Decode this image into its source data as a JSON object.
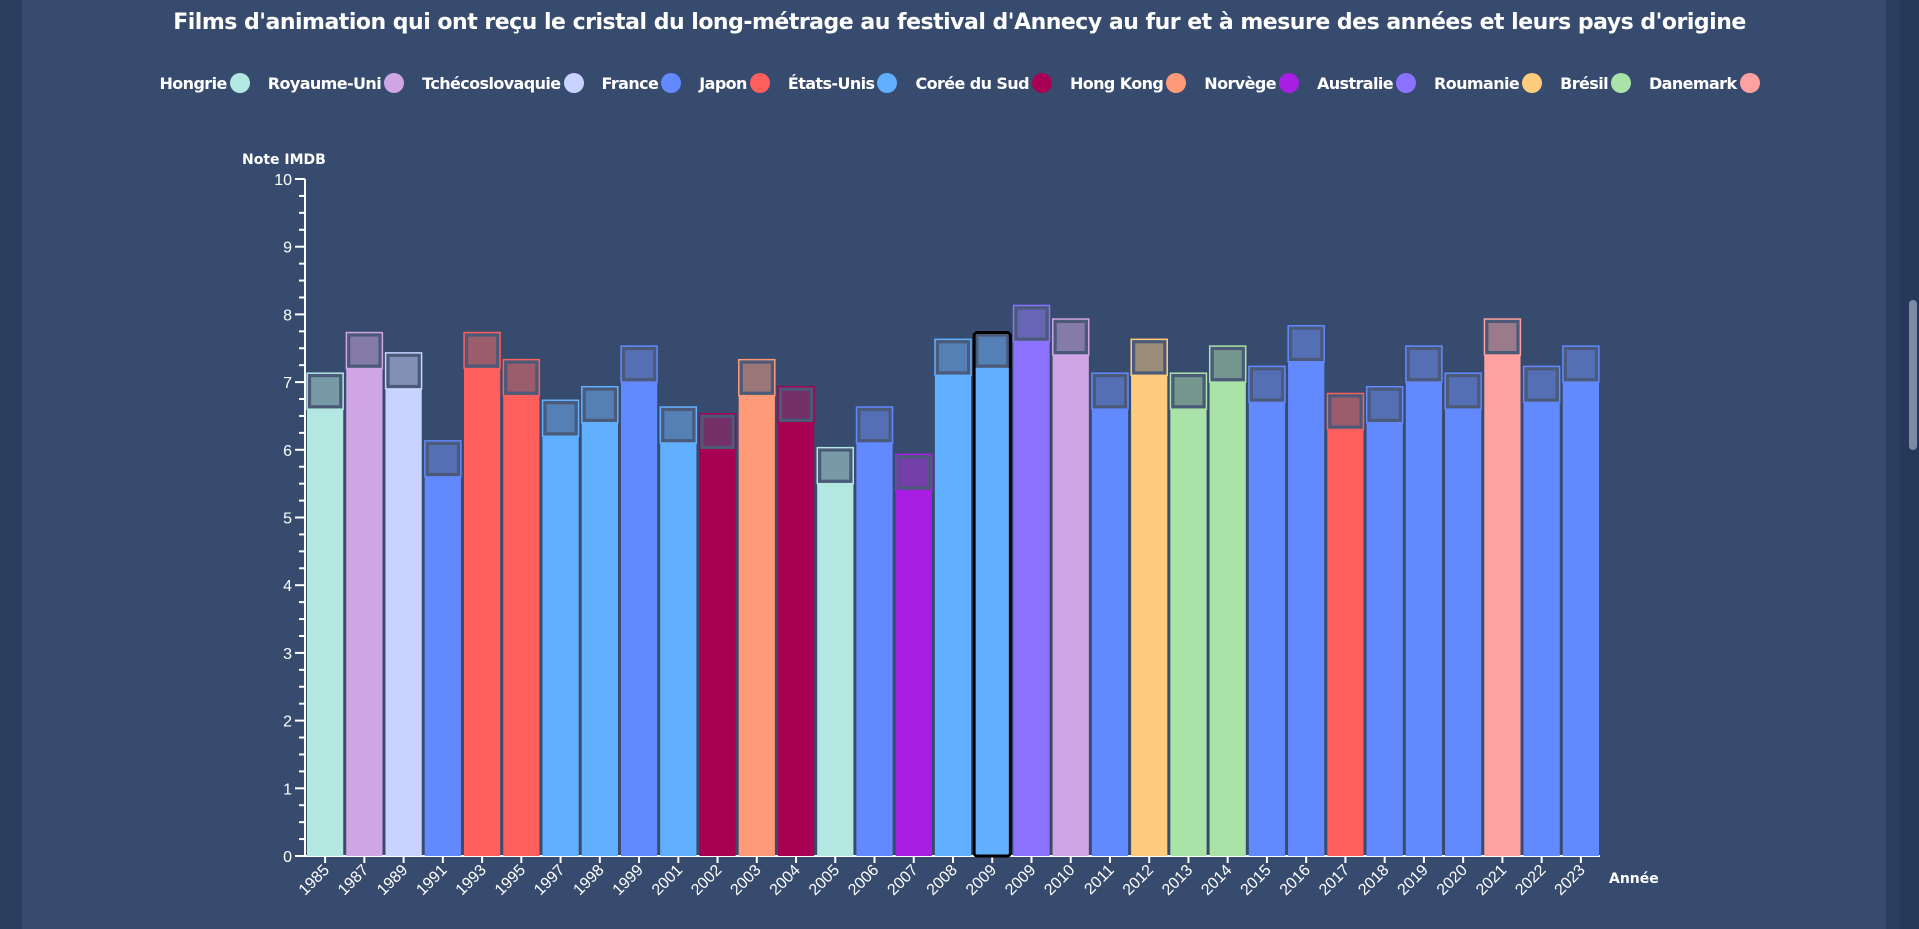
{
  "chart_data": {
    "type": "bar",
    "title": "Films d'animation qui ont reçu le cristal du long-métrage au festival d'Annecy au fur et à mesure des années et leurs pays d'origine",
    "ylabel": "Note IMDB",
    "xlabel": "Année",
    "ylim": [
      0,
      10
    ],
    "yticks": [
      "0",
      "1",
      "2",
      "3",
      "4",
      "5",
      "6",
      "7",
      "8",
      "9",
      "10"
    ],
    "grid": false,
    "legend_position": "top",
    "legend": [
      {
        "name": "Hongrie",
        "color": "#b2e8e1"
      },
      {
        "name": "Royaume-Uni",
        "color": "#cfa5e4"
      },
      {
        "name": "Tchécoslovaquie",
        "color": "#c8d3ff"
      },
      {
        "name": "France",
        "color": "#6389ff"
      },
      {
        "name": "Japon",
        "color": "#ff5f5c"
      },
      {
        "name": "États-Unis",
        "color": "#61b0ff"
      },
      {
        "name": "Corée du Sud",
        "color": "#a80052"
      },
      {
        "name": "Hong Kong",
        "color": "#ff9a78"
      },
      {
        "name": "Norvège",
        "color": "#a81fe3"
      },
      {
        "name": "Australie",
        "color": "#8c73ff"
      },
      {
        "name": "Roumanie",
        "color": "#ffcb7d"
      },
      {
        "name": "Brésil",
        "color": "#aae3a7"
      },
      {
        "name": "Danemark",
        "color": "#ffa1a1"
      }
    ],
    "bars": [
      {
        "year": "1985",
        "value": 6.6,
        "country": "Hongrie"
      },
      {
        "year": "1987",
        "value": 7.2,
        "country": "Royaume-Uni"
      },
      {
        "year": "1989",
        "value": 6.9,
        "country": "Tchécoslovaquie"
      },
      {
        "year": "1991",
        "value": 5.6,
        "country": "France"
      },
      {
        "year": "1993",
        "value": 7.2,
        "country": "Japon"
      },
      {
        "year": "1995",
        "value": 6.8,
        "country": "Japon"
      },
      {
        "year": "1997",
        "value": 6.2,
        "country": "États-Unis"
      },
      {
        "year": "1998",
        "value": 6.4,
        "country": "États-Unis"
      },
      {
        "year": "1999",
        "value": 7.0,
        "country": "France"
      },
      {
        "year": "2001",
        "value": 6.1,
        "country": "États-Unis"
      },
      {
        "year": "2002",
        "value": 6.0,
        "country": "Corée du Sud"
      },
      {
        "year": "2003",
        "value": 6.8,
        "country": "Hong Kong"
      },
      {
        "year": "2004",
        "value": 6.4,
        "country": "Corée du Sud"
      },
      {
        "year": "2005",
        "value": 5.5,
        "country": "Hongrie"
      },
      {
        "year": "2006",
        "value": 6.1,
        "country": "France"
      },
      {
        "year": "2007",
        "value": 5.4,
        "country": "Norvège"
      },
      {
        "year": "2008",
        "value": 7.1,
        "country": "États-Unis"
      },
      {
        "year": "2009",
        "value": 7.2,
        "country": "États-Unis",
        "highlighted": true
      },
      {
        "year": "2009",
        "value": 7.6,
        "country": "Australie"
      },
      {
        "year": "2010",
        "value": 7.4,
        "country": "Royaume-Uni"
      },
      {
        "year": "2011",
        "value": 6.6,
        "country": "France"
      },
      {
        "year": "2012",
        "value": 7.1,
        "country": "Roumanie"
      },
      {
        "year": "2013",
        "value": 6.6,
        "country": "Brésil"
      },
      {
        "year": "2014",
        "value": 7.0,
        "country": "Brésil"
      },
      {
        "year": "2015",
        "value": 6.7,
        "country": "France"
      },
      {
        "year": "2016",
        "value": 7.3,
        "country": "France"
      },
      {
        "year": "2017",
        "value": 6.3,
        "country": "Japon"
      },
      {
        "year": "2018",
        "value": 6.4,
        "country": "France"
      },
      {
        "year": "2019",
        "value": 7.0,
        "country": "France"
      },
      {
        "year": "2020",
        "value": 6.6,
        "country": "France"
      },
      {
        "year": "2021",
        "value": 7.4,
        "country": "Danemark"
      },
      {
        "year": "2022",
        "value": 6.7,
        "country": "France"
      },
      {
        "year": "2023",
        "value": 7.0,
        "country": "France"
      }
    ]
  }
}
